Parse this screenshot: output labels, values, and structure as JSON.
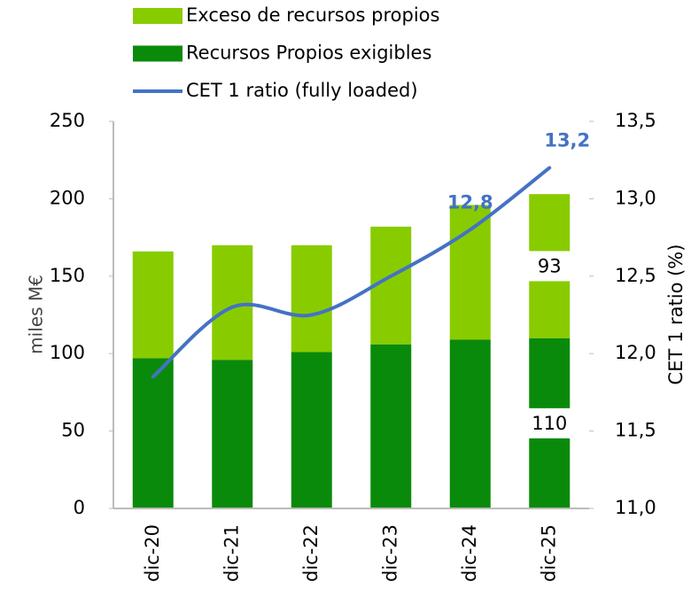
{
  "chart_data": {
    "type": "bar_line",
    "categories": [
      "dic-20",
      "dic-21",
      "dic-22",
      "dic-23",
      "dic-24",
      "dic-25"
    ],
    "series": [
      {
        "name": "Recursos Propios exigibles",
        "color": "#0a8a0a",
        "type": "bar",
        "values": [
          97,
          96,
          101,
          106,
          109,
          110
        ],
        "value_labels": [
          null,
          null,
          null,
          null,
          null,
          "110"
        ]
      },
      {
        "name": "Exceso de recursos propios",
        "color": "#88cc00",
        "type": "bar",
        "values": [
          69,
          74,
          69,
          76,
          87,
          93
        ],
        "value_labels": [
          null,
          null,
          null,
          null,
          null,
          "93"
        ]
      },
      {
        "name": "CET 1 ratio (fully loaded)",
        "color": "#4472c4",
        "type": "line",
        "axis": "y2",
        "values": [
          11.85,
          12.3,
          12.25,
          12.5,
          12.8,
          13.2
        ],
        "value_labels": [
          null,
          null,
          null,
          null,
          "12,8",
          "13,2"
        ]
      }
    ],
    "legend_order": [
      1,
      0,
      2
    ],
    "y_label": "miles M€",
    "y2_label": "CET 1 ratio (%)",
    "ylim": [
      0,
      250
    ],
    "yticks": [
      0,
      50,
      100,
      150,
      200,
      250
    ],
    "y2lim": [
      11,
      13.5
    ],
    "y2ticks": [
      {
        "value": 11,
        "label": "11,0"
      },
      {
        "value": 11.5,
        "label": "11,5"
      },
      {
        "value": 12,
        "label": "12,0"
      },
      {
        "value": 12.5,
        "label": "12,5"
      },
      {
        "value": 13,
        "label": "13,0"
      },
      {
        "value": 13.5,
        "label": "13,5"
      }
    ]
  }
}
